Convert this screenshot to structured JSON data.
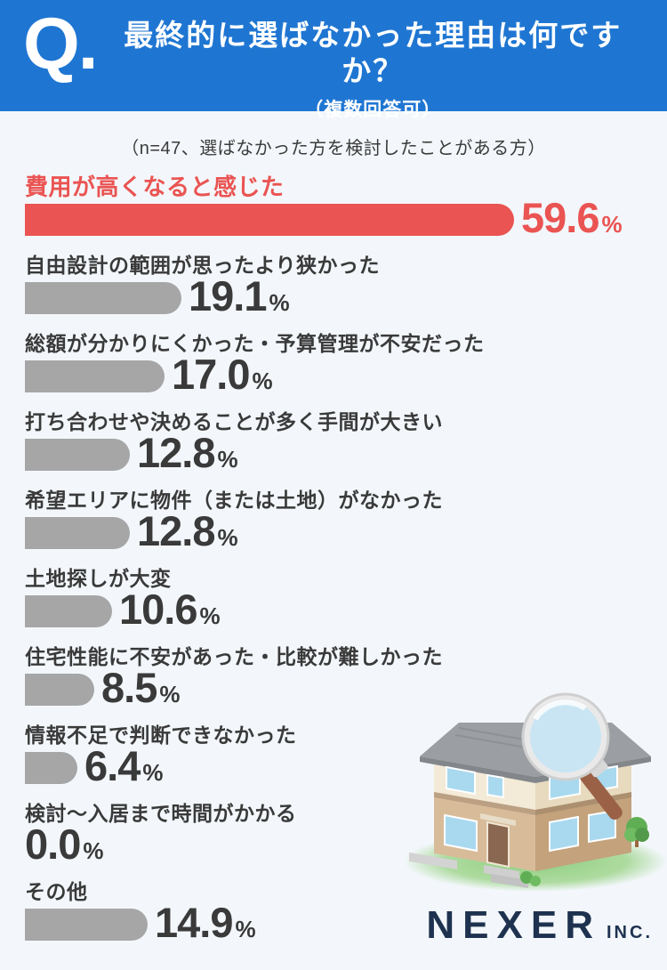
{
  "header": {
    "q_mark": "Q.",
    "title": "最終的に選ばなかった理由は何ですか？",
    "subtitle": "（複数回答可）"
  },
  "note": "（n=47、選ばなかった方を検討したことがある方）",
  "chart_data": {
    "type": "bar",
    "orientation": "horizontal",
    "unit": "%",
    "categories": [
      "費用が高くなると感じた",
      "自由設計の範囲が思ったより狭かった",
      "総額が分かりにくかった・予算管理が不安だった",
      "打ち合わせや決めることが多く手間が大きい",
      "希望エリアに物件（または土地）がなかった",
      "土地探しが大変",
      "住宅性能に不安があった・比較が難しかった",
      "情報不足で判断できなかった",
      "検討〜入居まで時間がかかる",
      "その他"
    ],
    "values": [
      59.6,
      19.1,
      17.0,
      12.8,
      12.8,
      10.6,
      8.5,
      6.4,
      0.0,
      14.9
    ],
    "value_labels": [
      "59.6",
      "19.1",
      "17.0",
      "12.8",
      "12.8",
      "10.6",
      "8.5",
      "6.4",
      "0.0",
      "14.9"
    ],
    "highlight_index": 0,
    "colors": {
      "highlight": "#ea5452",
      "default": "#a6a6a6"
    },
    "xlim": [
      0,
      65
    ],
    "grid": false,
    "legend": false
  },
  "illustration": {
    "name": "house-with-magnifying-glass"
  },
  "logo": {
    "name": "NEXER",
    "suffix": "INC."
  },
  "colors": {
    "header_bg": "#1f76d2",
    "page_bg": "#f3f7fb",
    "text_dark": "#3a3a3a",
    "logo_navy": "#1e3250"
  }
}
